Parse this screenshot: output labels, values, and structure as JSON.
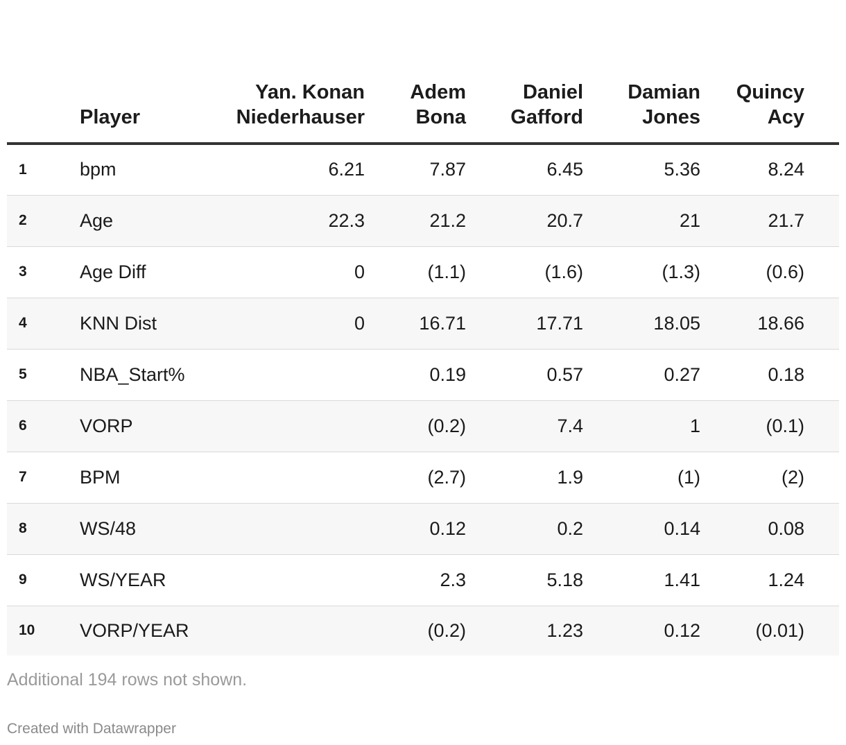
{
  "table": {
    "columns": [
      {
        "line1": "",
        "line2": ""
      },
      {
        "line1": "",
        "line2": "Player"
      },
      {
        "line1": "Yan. Konan",
        "line2": "Niederhauser"
      },
      {
        "line1": "Adem",
        "line2": "Bona"
      },
      {
        "line1": "Daniel",
        "line2": "Gafford"
      },
      {
        "line1": "Damian",
        "line2": "Jones"
      },
      {
        "line1": "Quincy",
        "line2": "Acy"
      }
    ],
    "rows": [
      {
        "num": "1",
        "player": "bpm",
        "v": [
          "6.21",
          "7.87",
          "6.45",
          "5.36",
          "8.24"
        ]
      },
      {
        "num": "2",
        "player": "Age",
        "v": [
          "22.3",
          "21.2",
          "20.7",
          "21",
          "21.7"
        ]
      },
      {
        "num": "3",
        "player": "Age Diff",
        "v": [
          "0",
          "(1.1)",
          "(1.6)",
          "(1.3)",
          "(0.6)"
        ]
      },
      {
        "num": "4",
        "player": "KNN Dist",
        "v": [
          "0",
          "16.71",
          "17.71",
          "18.05",
          "18.66"
        ]
      },
      {
        "num": "5",
        "player": "NBA_Start%",
        "v": [
          "",
          "0.19",
          "0.57",
          "0.27",
          "0.18"
        ]
      },
      {
        "num": "6",
        "player": "VORP",
        "v": [
          "",
          "(0.2)",
          "7.4",
          "1",
          "(0.1)"
        ]
      },
      {
        "num": "7",
        "player": "BPM",
        "v": [
          "",
          "(2.7)",
          "1.9",
          "(1)",
          "(2)"
        ]
      },
      {
        "num": "8",
        "player": "WS/48",
        "v": [
          "",
          "0.12",
          "0.2",
          "0.14",
          "0.08"
        ]
      },
      {
        "num": "9",
        "player": "WS/YEAR",
        "v": [
          "",
          "2.3",
          "5.18",
          "1.41",
          "1.24"
        ]
      },
      {
        "num": "10",
        "player": "VORP/YEAR",
        "v": [
          "",
          "(0.2)",
          "1.23",
          "0.12",
          "(0.01)"
        ]
      }
    ]
  },
  "footnote": "Additional 194 rows not shown.",
  "credit": "Created with Datawrapper"
}
